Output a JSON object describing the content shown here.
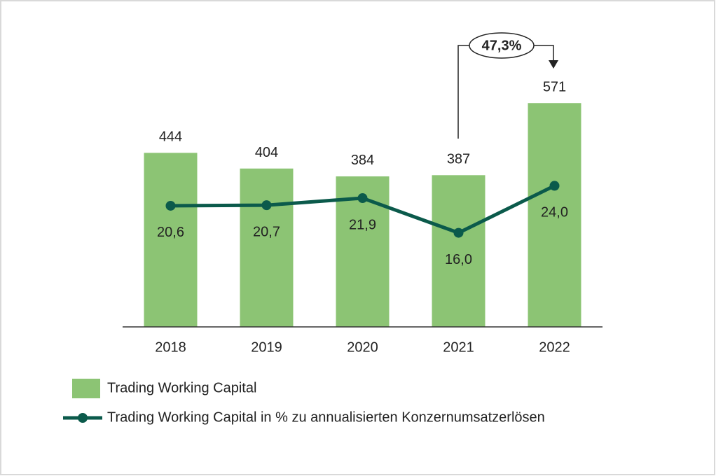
{
  "chart_data": {
    "type": "bar",
    "categories": [
      "2018",
      "2019",
      "2020",
      "2021",
      "2022"
    ],
    "series": [
      {
        "name": "Trading Working Capital",
        "type": "bar",
        "color": "#8cc474",
        "values": [
          444,
          404,
          384,
          387,
          571
        ]
      },
      {
        "name": "Trading Working Capital in % zu annualisierten Konzernumsatzerlösen",
        "type": "line",
        "axis": "y2",
        "color": "#0b5a4b",
        "values": [
          20.6,
          20.7,
          21.9,
          16.0,
          24.0
        ],
        "value_labels": [
          "20,6",
          "20,7",
          "21,9",
          "16,0",
          "24,0"
        ]
      }
    ],
    "ylim": [
      0,
      600
    ],
    "y2lim": [
      0,
      40
    ],
    "annotation": "47,3%"
  }
}
